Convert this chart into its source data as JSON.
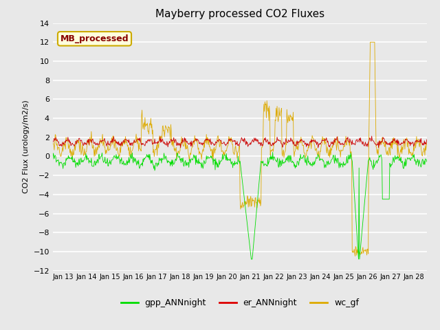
{
  "title": "Mayberry processed CO2 Fluxes",
  "ylabel": "CO2 Flux (urology/m2/s)",
  "xlabel": "",
  "ylim": [
    -12,
    14
  ],
  "yticks": [
    -12,
    -10,
    -8,
    -6,
    -4,
    -2,
    0,
    2,
    4,
    6,
    8,
    10,
    12,
    14
  ],
  "xtick_labels": [
    "Jan 13",
    "Jan 14",
    "Jan 15",
    "Jan 16",
    "Jan 17",
    "Jan 18",
    "Jan 19",
    "Jan 20",
    "Jan 21",
    "Jan 22",
    "Jan 23",
    "Jan 24",
    "Jan 25",
    "Jan 26",
    "Jan 27",
    "Jan 28"
  ],
  "legend_labels": [
    "gpp_ANNnight",
    "er_ANNnight",
    "wc_gf"
  ],
  "legend_colors": [
    "#00dd00",
    "#dd0000",
    "#ddaa00"
  ],
  "line_colors": {
    "gpp": "#00dd00",
    "er": "#cc0000",
    "wc": "#ddaa00"
  },
  "annotation_text": "MB_processed",
  "annotation_color": "#880000",
  "annotation_bg": "#ffffdd",
  "annotation_border": "#ccaa00",
  "bg_color": "#e8e8e8",
  "grid_color": "#f5f5f5",
  "n_points": 768,
  "seed": 42
}
